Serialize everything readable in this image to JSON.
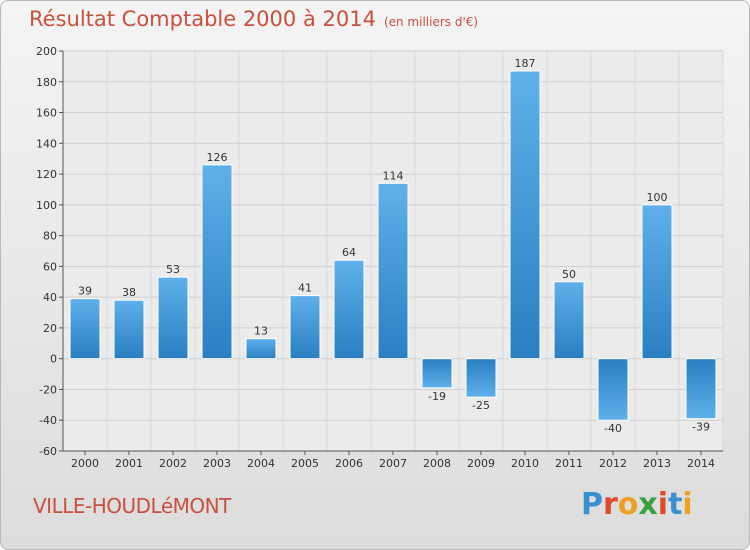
{
  "chart_data": {
    "type": "bar",
    "title": "Résultat Comptable 2000 à 2014",
    "subtitle": "(en milliers d'€)",
    "categories": [
      "2000",
      "2001",
      "2002",
      "2003",
      "2004",
      "2005",
      "2006",
      "2007",
      "2008",
      "2009",
      "2010",
      "2011",
      "2012",
      "2013",
      "2014"
    ],
    "values": [
      39,
      38,
      53,
      126,
      13,
      41,
      64,
      114,
      -19,
      -25,
      187,
      50,
      -40,
      100,
      -39
    ],
    "ylim": [
      -60,
      200
    ],
    "yticks": [
      -60,
      -40,
      -20,
      0,
      20,
      40,
      60,
      80,
      100,
      120,
      140,
      160,
      180,
      200
    ],
    "xlabel": "",
    "ylabel": "",
    "grid": true,
    "bar_color": "#3f98d8"
  },
  "location": "VILLE-HOUDLéMONT",
  "logo": {
    "text": "Proxiti",
    "letters": [
      "P",
      "r",
      "o",
      "x",
      "i",
      "t",
      "i"
    ],
    "colors": [
      "#3a8fd0",
      "#e04a2a",
      "#f0a020",
      "#3aa040",
      "#e04a2a",
      "#3a8fd0",
      "#f0a020"
    ]
  }
}
